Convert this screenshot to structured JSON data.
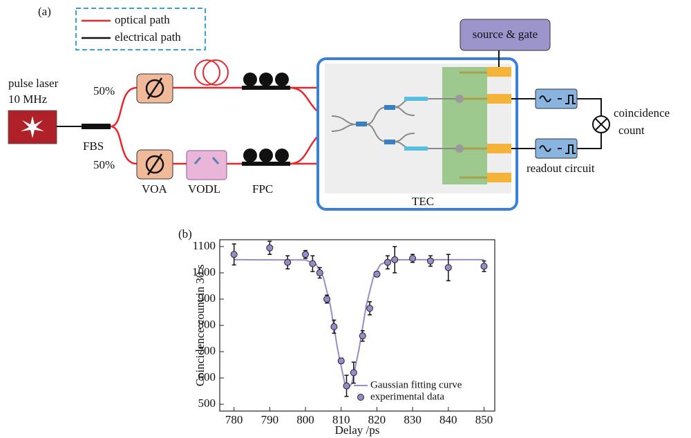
{
  "diagram": {
    "label": "(a)",
    "legend": [
      "optical path",
      "electrical path"
    ],
    "laser": [
      "pulse laser",
      "10 MHz"
    ],
    "splits": [
      "50%",
      "50%"
    ],
    "fbs": "FBS",
    "voa": "VOA",
    "vodl": "VODL",
    "fpc": "FPC",
    "tec": "TEC",
    "source_gate": "source & gate",
    "coincidence": [
      "coincidence",
      "count"
    ],
    "readout": "readout circuit"
  },
  "chart_data": {
    "type": "scatter",
    "label": "(b)",
    "x_label": "Delay /ps",
    "y_label": "Coincidence count in 30 s",
    "xlim": [
      776,
      853
    ],
    "ylim": [
      474,
      1126
    ],
    "xticks": [
      780,
      790,
      800,
      810,
      820,
      830,
      840,
      850
    ],
    "yticks": [
      500,
      600,
      700,
      800,
      900,
      1000,
      1100
    ],
    "legend": "lower right",
    "series": [
      {
        "name": "Gaussian fitting curve",
        "type": "line",
        "color": "#9b8ac9",
        "x": [
          780,
          800,
          803,
          805,
          807,
          809,
          811,
          812,
          813,
          815,
          817,
          819,
          821,
          824,
          830,
          850
        ],
        "values": [
          1050,
          1049,
          1032,
          984,
          874,
          710,
          580,
          560,
          580,
          710,
          874,
          984,
          1032,
          1049,
          1050,
          1050
        ]
      },
      {
        "name": "experimental data",
        "type": "scatter",
        "color": "#9b8ac9",
        "x": [
          780,
          790,
          795,
          800,
          802,
          804,
          806,
          808,
          810,
          811.5,
          813.5,
          816,
          818,
          820,
          823,
          825,
          830,
          835,
          840,
          850
        ],
        "values": [
          1070,
          1095,
          1040,
          1070,
          1035,
          1000,
          900,
          795,
          665,
          570,
          620,
          760,
          865,
          995,
          1040,
          1050,
          1055,
          1045,
          1020,
          1025
        ],
        "errors": [
          40,
          25,
          25,
          15,
          30,
          20,
          15,
          25,
          10,
          40,
          40,
          20,
          25,
          10,
          25,
          50,
          15,
          20,
          50,
          20
        ]
      }
    ]
  }
}
